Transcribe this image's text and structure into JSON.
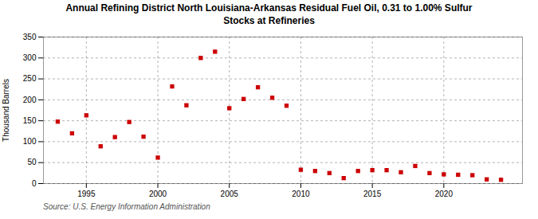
{
  "chart_data": {
    "type": "scatter",
    "title": "Annual Refining District North Louisiana-Arkansas Residual Fuel Oil, 0.31 to 1.00% Sulfur\nStocks at Refineries",
    "ylabel": "Thousand Barrels",
    "annotation": "Source: U.S. Energy Information Administration",
    "x": [
      1993,
      1994,
      1995,
      1996,
      1997,
      1998,
      1999,
      2000,
      2001,
      2002,
      2003,
      2004,
      2005,
      2006,
      2007,
      2008,
      2009,
      2010,
      2011,
      2012,
      2013,
      2014,
      2015,
      2016,
      2017,
      2018,
      2019,
      2020,
      2021,
      2022,
      2023,
      2024
    ],
    "values": [
      148,
      120,
      163,
      89,
      111,
      147,
      112,
      62,
      232,
      187,
      300,
      315,
      180,
      202,
      230,
      205,
      186,
      33,
      30,
      25,
      13,
      30,
      32,
      32,
      27,
      42,
      25,
      22,
      21,
      20,
      10,
      9
    ],
    "color": "#cc0000",
    "marker": "square",
    "xlim": [
      1992.0,
      2025.5
    ],
    "xticks": [
      1995,
      2000,
      2005,
      2010,
      2015,
      2020
    ],
    "ylim": [
      0,
      350
    ],
    "yticks": [
      0,
      50,
      100,
      150,
      200,
      250,
      300,
      350
    ],
    "grid": true
  }
}
